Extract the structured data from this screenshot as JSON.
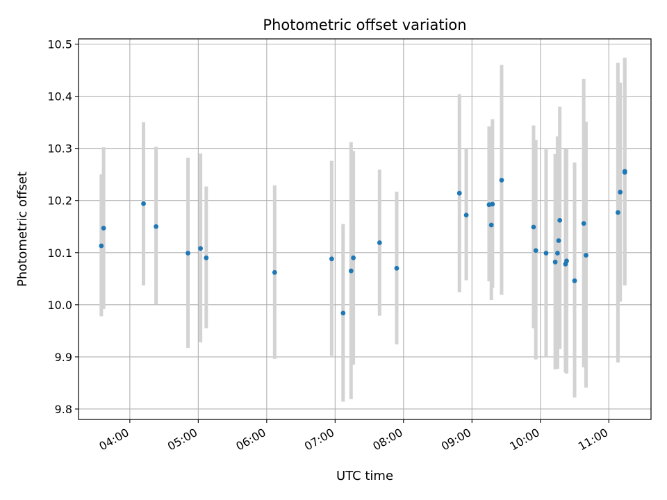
{
  "chart_data": {
    "type": "scatter",
    "title": "Photometric offset variation",
    "xlabel": "UTC time",
    "ylabel": "Photometric offset",
    "x_unit": "UTC time of day (HH:MM)",
    "xlim": [
      "03:15",
      "11:37"
    ],
    "ylim": [
      9.78,
      10.51
    ],
    "x_ticks": [
      "04:00",
      "05:00",
      "06:00",
      "07:00",
      "08:00",
      "09:00",
      "10:00",
      "11:00"
    ],
    "y_ticks": [
      9.8,
      9.9,
      10.0,
      10.1,
      10.2,
      10.3,
      10.4,
      10.5
    ],
    "y_tick_labels": [
      "9.8",
      "9.9",
      "10.0",
      "10.1",
      "10.2",
      "10.3",
      "10.4",
      "10.5"
    ],
    "grid": true,
    "marker_color": "#1f77b4",
    "errorbar_color": "#d3d3d3",
    "points": [
      {
        "x": "03:35",
        "y": 10.113,
        "ylo": 9.978,
        "yhi": 10.25
      },
      {
        "x": "03:37",
        "y": 10.147,
        "ylo": 9.992,
        "yhi": 10.302
      },
      {
        "x": "04:12",
        "y": 10.194,
        "ylo": 10.037,
        "yhi": 10.35
      },
      {
        "x": "04:23",
        "y": 10.15,
        "ylo": 10.001,
        "yhi": 10.303
      },
      {
        "x": "04:51",
        "y": 10.099,
        "ylo": 9.917,
        "yhi": 10.282
      },
      {
        "x": "05:02",
        "y": 10.108,
        "ylo": 9.928,
        "yhi": 10.29
      },
      {
        "x": "05:07",
        "y": 10.09,
        "ylo": 9.955,
        "yhi": 10.227
      },
      {
        "x": "06:07",
        "y": 10.062,
        "ylo": 9.896,
        "yhi": 10.229
      },
      {
        "x": "06:57",
        "y": 10.088,
        "ylo": 9.902,
        "yhi": 10.276
      },
      {
        "x": "07:07",
        "y": 9.984,
        "ylo": 9.814,
        "yhi": 10.155
      },
      {
        "x": "07:14",
        "y": 10.065,
        "ylo": 9.819,
        "yhi": 10.312
      },
      {
        "x": "07:16",
        "y": 10.09,
        "ylo": 9.885,
        "yhi": 10.295
      },
      {
        "x": "07:39",
        "y": 10.119,
        "ylo": 9.979,
        "yhi": 10.259
      },
      {
        "x": "07:54",
        "y": 10.07,
        "ylo": 9.924,
        "yhi": 10.217
      },
      {
        "x": "08:49",
        "y": 10.214,
        "ylo": 10.024,
        "yhi": 10.404
      },
      {
        "x": "08:55",
        "y": 10.172,
        "ylo": 10.047,
        "yhi": 10.301
      },
      {
        "x": "09:15",
        "y": 10.192,
        "ylo": 10.045,
        "yhi": 10.342
      },
      {
        "x": "09:17",
        "y": 10.153,
        "ylo": 10.009,
        "yhi": 10.296
      },
      {
        "x": "09:18",
        "y": 10.193,
        "ylo": 10.032,
        "yhi": 10.356
      },
      {
        "x": "09:26",
        "y": 10.239,
        "ylo": 10.019,
        "yhi": 10.46
      },
      {
        "x": "09:54",
        "y": 10.149,
        "ylo": 9.955,
        "yhi": 10.344
      },
      {
        "x": "09:56",
        "y": 10.104,
        "ylo": 9.895,
        "yhi": 10.316
      },
      {
        "x": "10:05",
        "y": 10.099,
        "ylo": 9.9,
        "yhi": 10.298
      },
      {
        "x": "10:13",
        "y": 10.082,
        "ylo": 9.876,
        "yhi": 10.289
      },
      {
        "x": "10:15",
        "y": 10.099,
        "ylo": 9.877,
        "yhi": 10.323
      },
      {
        "x": "10:16",
        "y": 10.123,
        "ylo": 9.937,
        "yhi": 10.309
      },
      {
        "x": "10:17",
        "y": 10.162,
        "ylo": 9.915,
        "yhi": 10.38
      },
      {
        "x": "10:22",
        "y": 10.078,
        "ylo": 9.87,
        "yhi": 10.3
      },
      {
        "x": "10:23",
        "y": 10.084,
        "ylo": 9.868,
        "yhi": 10.298
      },
      {
        "x": "10:30",
        "y": 10.046,
        "ylo": 9.822,
        "yhi": 10.273
      },
      {
        "x": "10:38",
        "y": 10.156,
        "ylo": 9.88,
        "yhi": 10.433
      },
      {
        "x": "10:40",
        "y": 10.095,
        "ylo": 9.841,
        "yhi": 10.351
      },
      {
        "x": "11:08",
        "y": 10.177,
        "ylo": 9.889,
        "yhi": 10.464
      },
      {
        "x": "11:10",
        "y": 10.216,
        "ylo": 10.006,
        "yhi": 10.426
      },
      {
        "x": "11:14",
        "y": 10.254,
        "ylo": 10.037,
        "yhi": 10.474
      },
      {
        "x": "11:14",
        "y": 10.256,
        "ylo": 10.04,
        "yhi": 10.472
      }
    ]
  }
}
